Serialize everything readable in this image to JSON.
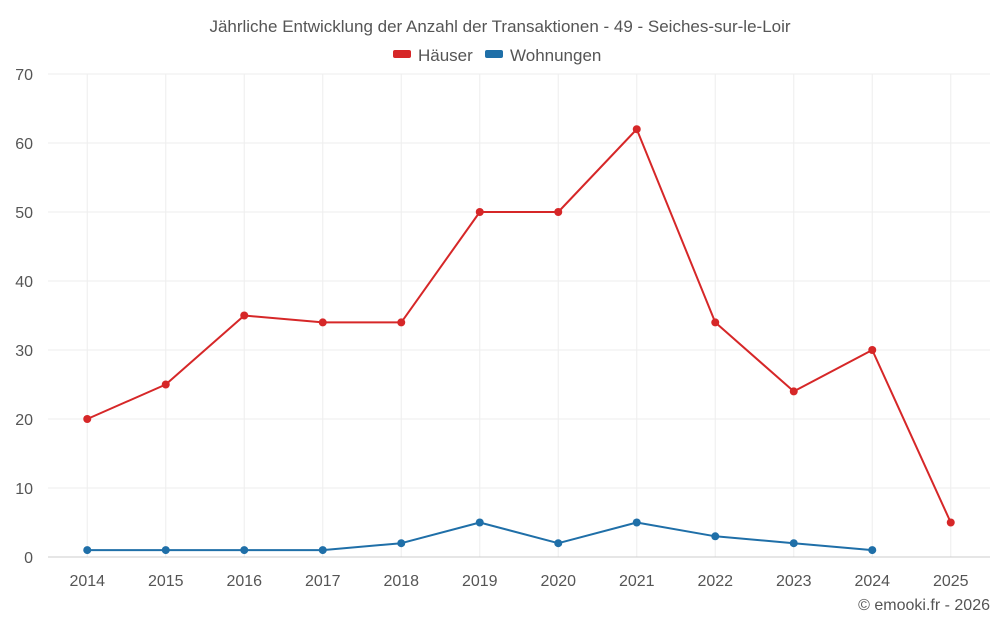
{
  "chart_data": {
    "type": "line",
    "title": "Jährliche Entwicklung der Anzahl der Transaktionen - 49 - Seiches-sur-le-Loir",
    "categories": [
      "2014",
      "2015",
      "2016",
      "2017",
      "2018",
      "2019",
      "2020",
      "2021",
      "2022",
      "2023",
      "2024",
      "2025"
    ],
    "ylim": [
      0,
      70
    ],
    "yticks": [
      0,
      10,
      20,
      30,
      40,
      50,
      60,
      70
    ],
    "grid": true,
    "legend_position": "top-center",
    "series": [
      {
        "name": "Häuser",
        "color": "#d62728",
        "values": [
          20,
          25,
          35,
          34,
          34,
          50,
          50,
          62,
          34,
          24,
          30,
          5
        ]
      },
      {
        "name": "Wohnungen",
        "color": "#1f6fa8",
        "values": [
          1,
          1,
          1,
          1,
          2,
          5,
          2,
          5,
          3,
          2,
          1,
          null
        ]
      }
    ],
    "credit": "© emooki.fr - 2026"
  }
}
